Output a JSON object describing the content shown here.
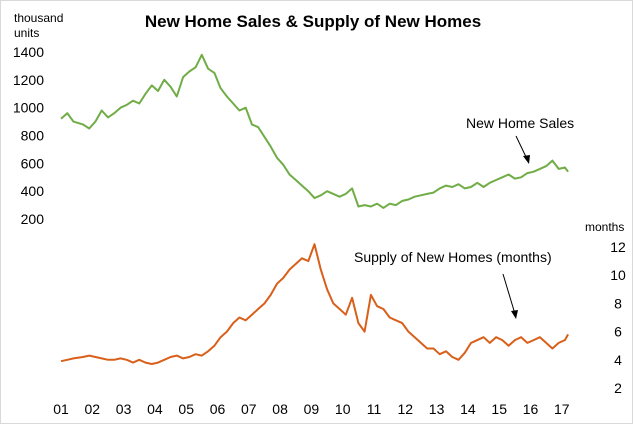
{
  "chart_data": {
    "type": "line",
    "title": "New Home Sales & Supply of New Homes",
    "x_ticks": [
      "01",
      "02",
      "03",
      "04",
      "05",
      "06",
      "07",
      "08",
      "09",
      "10",
      "11",
      "12",
      "13",
      "14",
      "15",
      "16",
      "17"
    ],
    "left_axis": {
      "unit_line1": "thousand",
      "unit_line2": "units",
      "ticks": [
        200,
        400,
        600,
        800,
        1000,
        1200,
        1400
      ],
      "range": [
        200,
        1400
      ]
    },
    "right_axis": {
      "unit": "months",
      "ticks": [
        2,
        4,
        6,
        8,
        10,
        12
      ],
      "range": [
        2,
        12
      ]
    },
    "grid": false,
    "series": [
      {
        "name": "New Home Sales",
        "axis": "left",
        "color": "#70ad47",
        "annotation": "New Home Sales",
        "points": [
          [
            2001.0,
            920
          ],
          [
            2001.2,
            960
          ],
          [
            2001.4,
            900
          ],
          [
            2001.7,
            880
          ],
          [
            2001.9,
            850
          ],
          [
            2002.1,
            900
          ],
          [
            2002.3,
            980
          ],
          [
            2002.5,
            930
          ],
          [
            2002.7,
            960
          ],
          [
            2002.9,
            1000
          ],
          [
            2003.1,
            1020
          ],
          [
            2003.3,
            1050
          ],
          [
            2003.5,
            1030
          ],
          [
            2003.7,
            1100
          ],
          [
            2003.9,
            1160
          ],
          [
            2004.1,
            1120
          ],
          [
            2004.3,
            1200
          ],
          [
            2004.5,
            1150
          ],
          [
            2004.7,
            1080
          ],
          [
            2004.9,
            1220
          ],
          [
            2005.1,
            1260
          ],
          [
            2005.3,
            1290
          ],
          [
            2005.5,
            1380
          ],
          [
            2005.7,
            1280
          ],
          [
            2005.9,
            1250
          ],
          [
            2006.1,
            1140
          ],
          [
            2006.3,
            1080
          ],
          [
            2006.5,
            1030
          ],
          [
            2006.7,
            980
          ],
          [
            2006.9,
            1000
          ],
          [
            2007.1,
            880
          ],
          [
            2007.3,
            860
          ],
          [
            2007.5,
            790
          ],
          [
            2007.7,
            720
          ],
          [
            2007.9,
            640
          ],
          [
            2008.1,
            590
          ],
          [
            2008.3,
            520
          ],
          [
            2008.5,
            480
          ],
          [
            2008.7,
            440
          ],
          [
            2008.9,
            400
          ],
          [
            2009.1,
            350
          ],
          [
            2009.3,
            370
          ],
          [
            2009.5,
            400
          ],
          [
            2009.7,
            380
          ],
          [
            2009.9,
            360
          ],
          [
            2010.1,
            380
          ],
          [
            2010.3,
            420
          ],
          [
            2010.5,
            290
          ],
          [
            2010.7,
            300
          ],
          [
            2010.9,
            290
          ],
          [
            2011.1,
            310
          ],
          [
            2011.3,
            280
          ],
          [
            2011.5,
            310
          ],
          [
            2011.7,
            300
          ],
          [
            2011.9,
            330
          ],
          [
            2012.1,
            340
          ],
          [
            2012.3,
            360
          ],
          [
            2012.5,
            370
          ],
          [
            2012.7,
            380
          ],
          [
            2012.9,
            390
          ],
          [
            2013.1,
            420
          ],
          [
            2013.3,
            440
          ],
          [
            2013.5,
            430
          ],
          [
            2013.7,
            450
          ],
          [
            2013.9,
            420
          ],
          [
            2014.1,
            430
          ],
          [
            2014.3,
            460
          ],
          [
            2014.5,
            430
          ],
          [
            2014.7,
            460
          ],
          [
            2014.9,
            480
          ],
          [
            2015.1,
            500
          ],
          [
            2015.3,
            520
          ],
          [
            2015.5,
            490
          ],
          [
            2015.7,
            500
          ],
          [
            2015.9,
            530
          ],
          [
            2016.1,
            540
          ],
          [
            2016.3,
            560
          ],
          [
            2016.5,
            580
          ],
          [
            2016.7,
            620
          ],
          [
            2016.9,
            560
          ],
          [
            2017.1,
            570
          ],
          [
            2017.2,
            540
          ]
        ]
      },
      {
        "name": "Supply of New Homes (months)",
        "axis": "right",
        "color": "#d8601a",
        "annotation": "Supply of New Homes (months)",
        "points": [
          [
            2001.0,
            3.9
          ],
          [
            2001.2,
            4.0
          ],
          [
            2001.4,
            4.1
          ],
          [
            2001.7,
            4.2
          ],
          [
            2001.9,
            4.3
          ],
          [
            2002.1,
            4.2
          ],
          [
            2002.3,
            4.1
          ],
          [
            2002.5,
            4.0
          ],
          [
            2002.7,
            4.0
          ],
          [
            2002.9,
            4.1
          ],
          [
            2003.1,
            4.0
          ],
          [
            2003.3,
            3.8
          ],
          [
            2003.5,
            4.0
          ],
          [
            2003.7,
            3.8
          ],
          [
            2003.9,
            3.7
          ],
          [
            2004.1,
            3.8
          ],
          [
            2004.3,
            4.0
          ],
          [
            2004.5,
            4.2
          ],
          [
            2004.7,
            4.3
          ],
          [
            2004.9,
            4.1
          ],
          [
            2005.1,
            4.2
          ],
          [
            2005.3,
            4.4
          ],
          [
            2005.5,
            4.3
          ],
          [
            2005.7,
            4.6
          ],
          [
            2005.9,
            5.0
          ],
          [
            2006.1,
            5.6
          ],
          [
            2006.3,
            6.0
          ],
          [
            2006.5,
            6.6
          ],
          [
            2006.7,
            7.0
          ],
          [
            2006.9,
            6.8
          ],
          [
            2007.1,
            7.2
          ],
          [
            2007.3,
            7.6
          ],
          [
            2007.5,
            8.0
          ],
          [
            2007.7,
            8.6
          ],
          [
            2007.9,
            9.4
          ],
          [
            2008.1,
            9.8
          ],
          [
            2008.3,
            10.4
          ],
          [
            2008.5,
            10.8
          ],
          [
            2008.7,
            11.2
          ],
          [
            2008.9,
            11.0
          ],
          [
            2009.1,
            12.2
          ],
          [
            2009.3,
            10.4
          ],
          [
            2009.5,
            9.0
          ],
          [
            2009.7,
            8.0
          ],
          [
            2009.9,
            7.6
          ],
          [
            2010.1,
            7.2
          ],
          [
            2010.3,
            8.4
          ],
          [
            2010.5,
            6.6
          ],
          [
            2010.7,
            6.0
          ],
          [
            2010.9,
            8.6
          ],
          [
            2011.1,
            7.8
          ],
          [
            2011.3,
            7.6
          ],
          [
            2011.5,
            7.0
          ],
          [
            2011.7,
            6.8
          ],
          [
            2011.9,
            6.6
          ],
          [
            2012.1,
            6.0
          ],
          [
            2012.3,
            5.6
          ],
          [
            2012.5,
            5.2
          ],
          [
            2012.7,
            4.8
          ],
          [
            2012.9,
            4.8
          ],
          [
            2013.1,
            4.4
          ],
          [
            2013.3,
            4.6
          ],
          [
            2013.5,
            4.2
          ],
          [
            2013.7,
            4.0
          ],
          [
            2013.9,
            4.5
          ],
          [
            2014.1,
            5.2
          ],
          [
            2014.3,
            5.4
          ],
          [
            2014.5,
            5.6
          ],
          [
            2014.7,
            5.2
          ],
          [
            2014.9,
            5.6
          ],
          [
            2015.1,
            5.4
          ],
          [
            2015.3,
            5.0
          ],
          [
            2015.5,
            5.4
          ],
          [
            2015.7,
            5.6
          ],
          [
            2015.9,
            5.2
          ],
          [
            2016.1,
            5.4
          ],
          [
            2016.3,
            5.6
          ],
          [
            2016.5,
            5.2
          ],
          [
            2016.7,
            4.8
          ],
          [
            2016.9,
            5.2
          ],
          [
            2017.1,
            5.4
          ],
          [
            2017.2,
            5.8
          ]
        ]
      }
    ]
  }
}
